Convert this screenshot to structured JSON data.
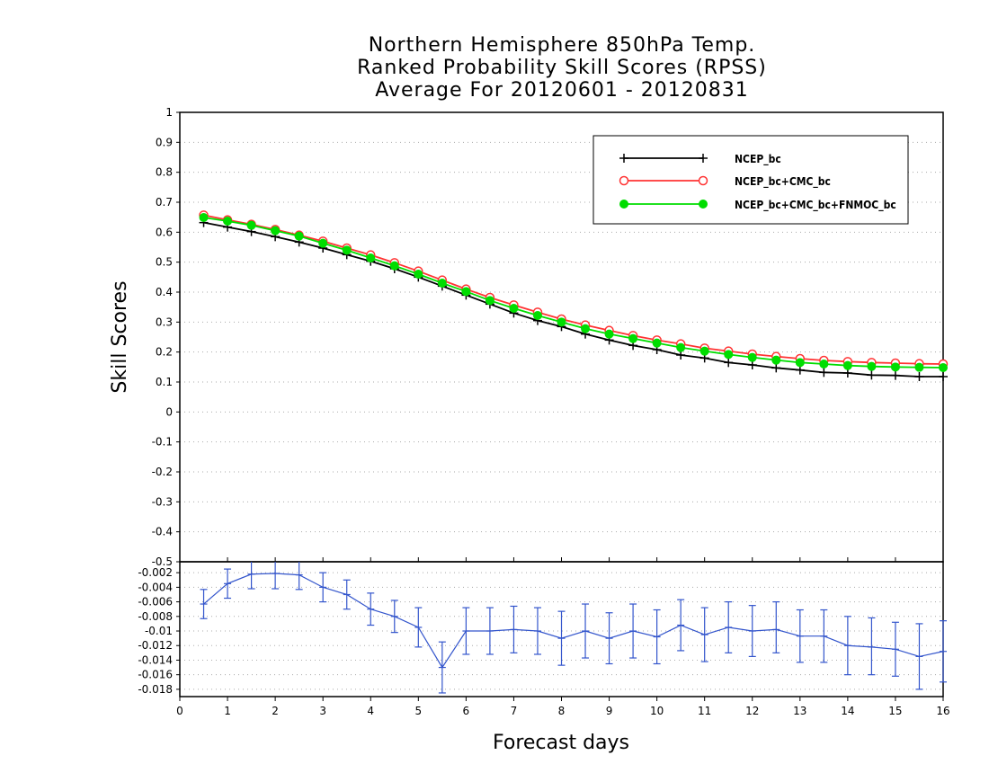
{
  "chart_data": [
    {
      "type": "line",
      "title_lines": [
        "Northern Hemisphere 850hPa Temp.",
        "Ranked Probability Skill Scores (RPSS)",
        "Average For 20120601 - 20120831"
      ],
      "xlabel": "Forecast days",
      "ylabel": "Skill Scores",
      "xlim": [
        0,
        16
      ],
      "ylim": [
        -0.5,
        1
      ],
      "x_ticks": [
        "0",
        "1",
        "2",
        "3",
        "4",
        "5",
        "6",
        "7",
        "8",
        "9",
        "10",
        "11",
        "12",
        "13",
        "14",
        "15",
        "16"
      ],
      "y_ticks": [
        "-0.5",
        "-0.4",
        "-0.3",
        "-0.2",
        "-0.1",
        "0",
        "0.1",
        "0.2",
        "0.3",
        "0.4",
        "0.5",
        "0.6",
        "0.7",
        "0.8",
        "0.9",
        "1"
      ],
      "grid": "dotted-horizontal",
      "legend_position": "top-right",
      "x": [
        0.5,
        1,
        1.5,
        2,
        2.5,
        3,
        3.5,
        4,
        4.5,
        5,
        5.5,
        6,
        6.5,
        7,
        7.5,
        8,
        8.5,
        9,
        9.5,
        10,
        10.5,
        11,
        11.5,
        12,
        12.5,
        13,
        13.5,
        14,
        14.5,
        15,
        15.5,
        16
      ],
      "series": [
        {
          "name": "NCEP_bc",
          "color": "#000000",
          "marker": "plus",
          "values": [
            0.632,
            0.617,
            0.602,
            0.585,
            0.567,
            0.547,
            0.525,
            0.503,
            0.478,
            0.45,
            0.42,
            0.39,
            0.36,
            0.33,
            0.305,
            0.285,
            0.26,
            0.24,
            0.222,
            0.208,
            0.19,
            0.18,
            0.165,
            0.157,
            0.147,
            0.14,
            0.132,
            0.13,
            0.123,
            0.122,
            0.118,
            0.118
          ]
        },
        {
          "name": "NCEP_bc+CMC_bc",
          "color": "#ff3333",
          "marker": "open-circle",
          "values": [
            0.657,
            0.641,
            0.626,
            0.609,
            0.59,
            0.57,
            0.547,
            0.524,
            0.498,
            0.47,
            0.44,
            0.41,
            0.382,
            0.357,
            0.333,
            0.31,
            0.29,
            0.272,
            0.255,
            0.24,
            0.227,
            0.213,
            0.203,
            0.193,
            0.185,
            0.178,
            0.172,
            0.168,
            0.165,
            0.163,
            0.161,
            0.16
          ]
        },
        {
          "name": "NCEP_bc+CMC_bc+FNMOC_bc",
          "color": "#00dd00",
          "marker": "filled-circle",
          "values": [
            0.649,
            0.637,
            0.623,
            0.605,
            0.587,
            0.563,
            0.54,
            0.514,
            0.488,
            0.46,
            0.43,
            0.402,
            0.372,
            0.346,
            0.322,
            0.3,
            0.278,
            0.26,
            0.245,
            0.23,
            0.215,
            0.203,
            0.192,
            0.182,
            0.173,
            0.165,
            0.16,
            0.155,
            0.152,
            0.15,
            0.149,
            0.148
          ]
        }
      ]
    },
    {
      "type": "line",
      "ylim": [
        -0.019,
        -0.0005
      ],
      "y_ticks": [
        "-0.002",
        "-0.004",
        "-0.006",
        "-0.008",
        "-0.01",
        "-0.012",
        "-0.014",
        "-0.016",
        "-0.018"
      ],
      "x": [
        0.5,
        1,
        1.5,
        2,
        2.5,
        3,
        3.5,
        4,
        4.5,
        5,
        5.5,
        6,
        6.5,
        7,
        7.5,
        8,
        8.5,
        9,
        9.5,
        10,
        10.5,
        11,
        11.5,
        12,
        12.5,
        13,
        13.5,
        14,
        14.5,
        15,
        15.5,
        16
      ],
      "series": [
        {
          "color": "#3355cc",
          "values": [
            -0.0063,
            -0.0035,
            -0.0022,
            -0.0021,
            -0.0023,
            -0.004,
            -0.005,
            -0.007,
            -0.008,
            -0.0095,
            -0.015,
            -0.01,
            -0.01,
            -0.0098,
            -0.01,
            -0.011,
            -0.01,
            -0.011,
            -0.01,
            -0.0108,
            -0.0092,
            -0.0105,
            -0.0095,
            -0.01,
            -0.0098,
            -0.0107,
            -0.0107,
            -0.012,
            -0.0122,
            -0.0125,
            -0.0135,
            -0.0128
          ],
          "err_low": [
            -0.0083,
            -0.0055,
            -0.0042,
            -0.0042,
            -0.0043,
            -0.006,
            -0.007,
            -0.0092,
            -0.0102,
            -0.0122,
            -0.0185,
            -0.0132,
            -0.0132,
            -0.013,
            -0.0132,
            -0.0147,
            -0.0137,
            -0.0145,
            -0.0137,
            -0.0145,
            -0.0127,
            -0.0142,
            -0.013,
            -0.0135,
            -0.013,
            -0.0143,
            -0.0143,
            -0.016,
            -0.016,
            -0.0162,
            -0.018,
            -0.017
          ],
          "err_high": [
            -0.0043,
            -0.0015,
            -0.0002,
            0.0,
            -0.0003,
            -0.002,
            -0.003,
            -0.0048,
            -0.0058,
            -0.0068,
            -0.0115,
            -0.0068,
            -0.0068,
            -0.0066,
            -0.0068,
            -0.0073,
            -0.0063,
            -0.0075,
            -0.0063,
            -0.0071,
            -0.0057,
            -0.0068,
            -0.006,
            -0.0065,
            -0.006,
            -0.0071,
            -0.0071,
            -0.008,
            -0.0082,
            -0.0088,
            -0.009,
            -0.0086
          ]
        }
      ]
    }
  ]
}
